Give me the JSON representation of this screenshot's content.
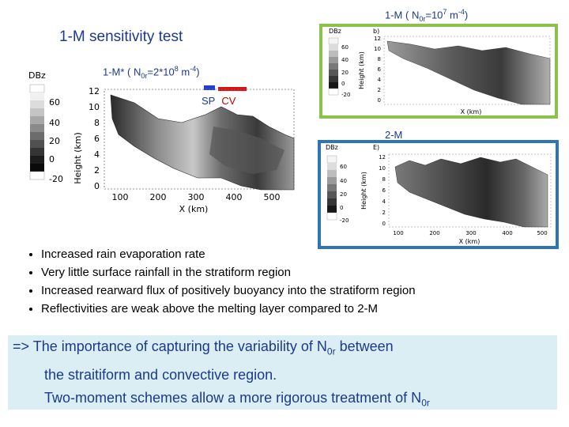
{
  "slide": {
    "title": "1-M sensitivity test",
    "main_caption": {
      "prefix": "1-M* ( N",
      "sub": "0r",
      "mid": "=2*10",
      "sup1": "8",
      "unit": " m",
      "sup2": "-4",
      "suffix": ")"
    },
    "tr_caption": {
      "prefix": "1-M ( N",
      "sub": "0r",
      "mid": "=10",
      "sup1": "7",
      "unit": " m",
      "sup2": "-4",
      "suffix": ")"
    },
    "br_caption": "2-M",
    "sp_label": "SP",
    "cv_label": "CV",
    "bullets": [
      "Increased rain evaporation rate",
      "Very little surface rainfall in the stratiform region",
      "Increased rearward flux of positively buoyancy into the stratiform region",
      "Reflectivities are weak above the melting layer compared to 2-M"
    ],
    "conclusion": {
      "line1_prefix": "=> The importance of capturing the variability of N",
      "line1_sub": "0r",
      "line1_suffix": " between",
      "line2": "the straitiform and convective region.",
      "line3_prefix": "Two-moment schemes allow a more rigorous treatment of N",
      "line3_sub": "0r"
    }
  },
  "main_plot": {
    "colorbar_label": "DBz",
    "colorbar_ticks": [
      "60",
      "40",
      "20",
      "0",
      "-20"
    ],
    "ylabel": "Height (km)",
    "yticks": [
      "12",
      "10",
      "8",
      "6",
      "4",
      "2",
      "0"
    ],
    "xlabel": "X (km)",
    "xticks": [
      "100",
      "200",
      "300",
      "400",
      "500"
    ]
  },
  "tr_plot": {
    "colorbar_label": "DBz",
    "panel_label": "b)",
    "colorbar_ticks": [
      "60",
      "40",
      "20",
      "0",
      "-20"
    ],
    "ylabel": "Height (km)",
    "yticks": [
      "12",
      "10",
      "8",
      "6",
      "4",
      "2",
      "0"
    ],
    "xlabel": "X (km)"
  },
  "br_plot": {
    "colorbar_label": "DBz",
    "panel_label": "E)",
    "colorbar_ticks": [
      "60",
      "40",
      "20",
      "0",
      "-20"
    ],
    "ylabel": "Height (km)",
    "yticks": [
      "12",
      "10",
      "8",
      "6",
      "4",
      "2",
      "0"
    ],
    "xlabel": "X (km)",
    "xticks": [
      "100",
      "200",
      "300",
      "400",
      "500"
    ]
  },
  "colors": {
    "accent_blue": "#1b3a8a",
    "cv_red": "#c00000",
    "green_frame": "#8bc34a",
    "blue_frame": "#2e75b6",
    "conclusion_bg": "#dbeef4"
  }
}
